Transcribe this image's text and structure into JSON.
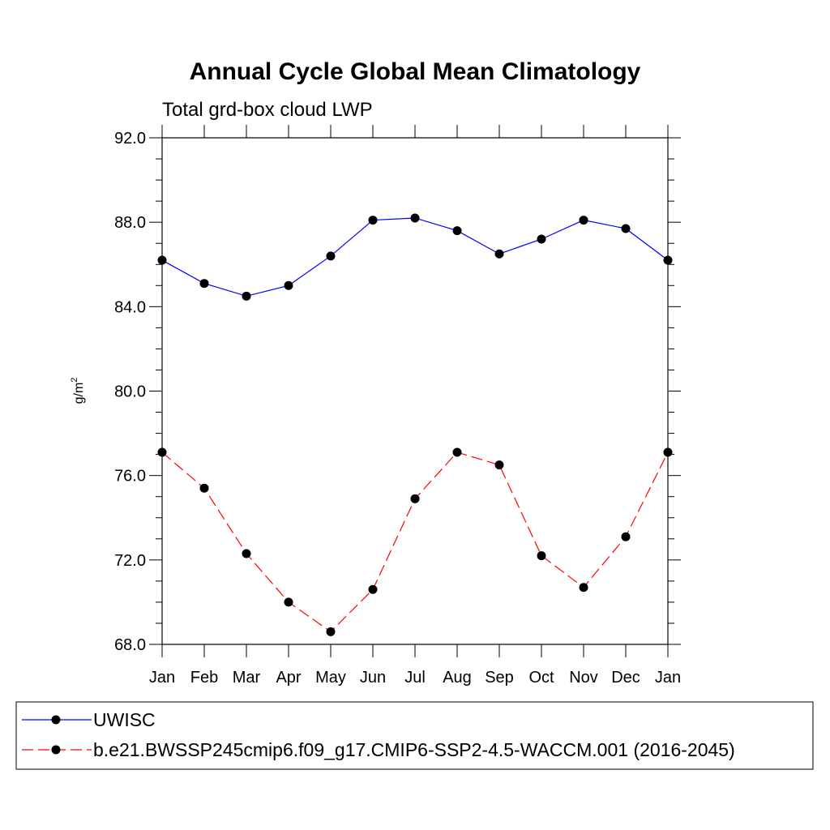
{
  "colors": {
    "uwisc": "#0000ff",
    "model": "#ff0000",
    "marker": "#000000"
  },
  "chart_data": {
    "type": "line",
    "title": "Annual Cycle Global Mean Climatology",
    "subtitle": "Total grd-box cloud LWP",
    "ylabel_base": "g/m",
    "ylabel_sup": "2",
    "ylim": [
      68,
      92
    ],
    "ytick_values": [
      68,
      72,
      76,
      80,
      84,
      88,
      92
    ],
    "ytick_labels": [
      "68.0",
      "72.0",
      "76.0",
      "80.0",
      "84.0",
      "88.0",
      "92.0"
    ],
    "yminor_step": 1,
    "categories": [
      "Jan",
      "Feb",
      "Mar",
      "Apr",
      "May",
      "Jun",
      "Jul",
      "Aug",
      "Sep",
      "Oct",
      "Nov",
      "Dec",
      "Jan"
    ],
    "series": [
      {
        "name": "UWISC",
        "color": "#0000ff",
        "dash": "solid",
        "values": [
          86.2,
          85.1,
          84.5,
          85.0,
          86.4,
          88.1,
          88.2,
          87.6,
          86.5,
          87.2,
          88.1,
          87.7,
          86.2
        ]
      },
      {
        "name": "b.e21.BWSSP245cmip6.f09_g17.CMIP6-SSP2-4.5-WACCM.001 (2016-2045)",
        "color": "#ff0000",
        "dash": "dashed",
        "values": [
          77.1,
          75.4,
          72.3,
          70.0,
          68.6,
          70.6,
          74.9,
          77.1,
          76.5,
          72.2,
          70.7,
          73.1,
          77.1
        ]
      }
    ],
    "legend_position": "bottom",
    "grid": false
  }
}
